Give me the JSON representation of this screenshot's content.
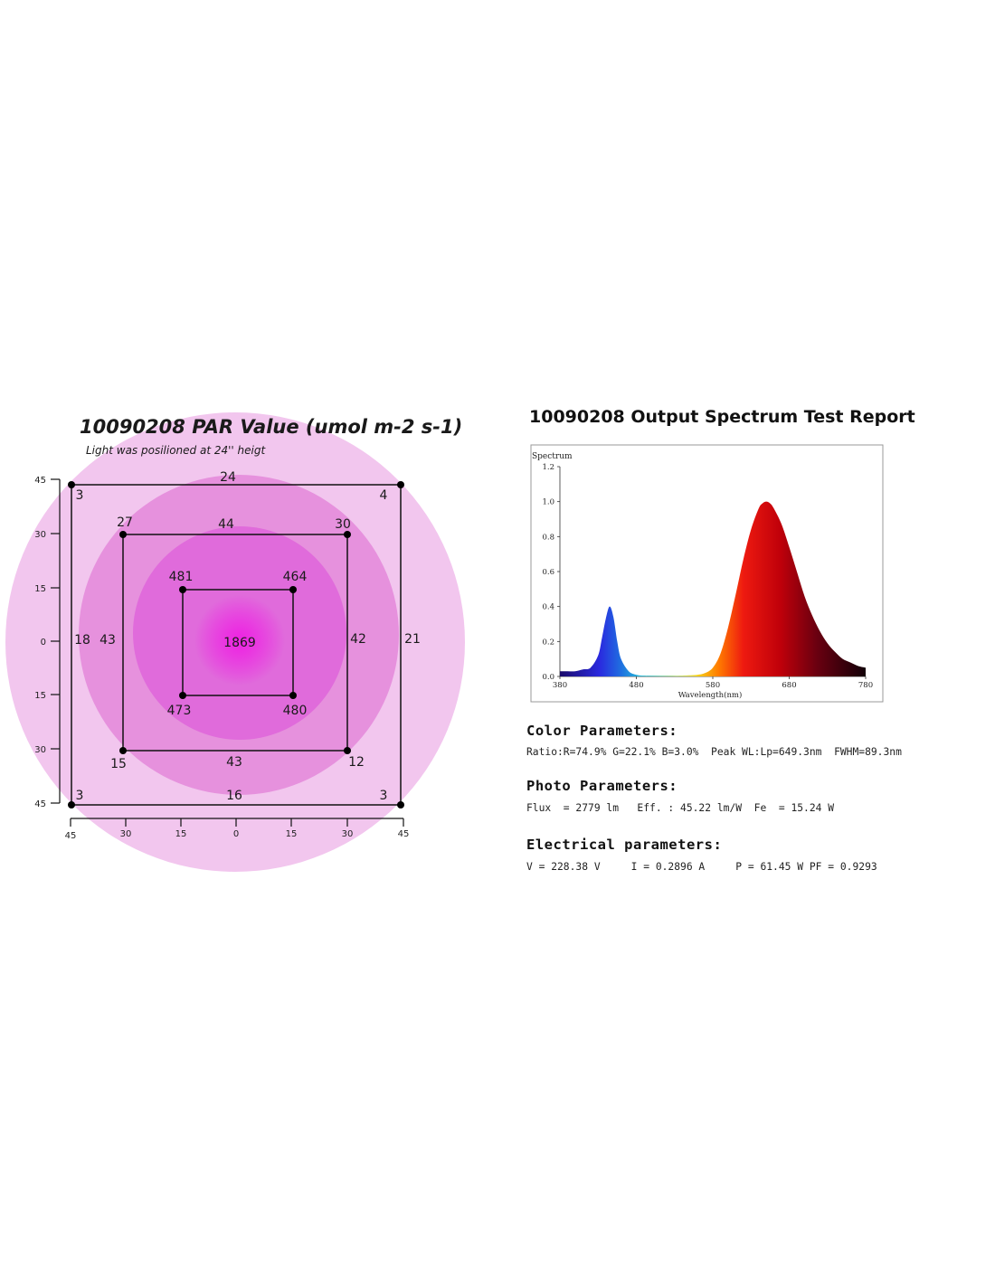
{
  "par": {
    "title": "10090208 PAR Value (umol m-2 s-1)",
    "subtitle": "Light was posilioned at 24'' heigt",
    "center_value": "1869",
    "outer_square": {
      "top": "24",
      "bottom": "16",
      "left": "18",
      "right": "21",
      "top_left": "3",
      "top_right": "4",
      "bottom_left": "3",
      "bottom_right": "3"
    },
    "middle_square": {
      "top": "44",
      "bottom": "43",
      "left": "43",
      "right": "42",
      "top_left": "27",
      "top_right": "30",
      "bottom_left": "15",
      "bottom_right": "12"
    },
    "inner_square": {
      "top_left": "481",
      "top_right": "464",
      "bottom_left": "473",
      "bottom_right": "480"
    },
    "y_ticks": [
      "45",
      "30",
      "15",
      "0",
      "15",
      "30",
      "45"
    ],
    "x_ticks": [
      "45",
      "30",
      "15",
      "0",
      "15",
      "30",
      "45"
    ],
    "colors": {
      "outer_circle": "#f2c6ee",
      "middle_circle": "#e691dd",
      "inner_circle": "#e06bdb",
      "hot_center": "#ee22e2"
    }
  },
  "spectrum": {
    "title": "10090208 Output Spectrum Test Report",
    "chart_label": "Spectrum",
    "color_params_heading": "Color Parameters:",
    "color_params_line": "Ratio:R=74.9% G=22.1% B=3.0%  Peak WL:Lp=649.3nm  FWHM=89.3nm",
    "photo_params_heading": "Photo Parameters:",
    "photo_params_line": "Flux  = 2779 lm   Eff. : 45.22 lm/W  Fe  = 15.24 W",
    "electrical_heading": "Electrical parameters:",
    "electrical_line": "V = 228.38 V     I = 0.2896 A     P = 61.45 W PF = 0.9293"
  },
  "chart_data": {
    "type": "area",
    "title": "",
    "xlabel": "Wavelength(nm)",
    "ylabel": "",
    "xlim": [
      380,
      780
    ],
    "ylim": [
      0,
      1.2
    ],
    "x_ticks": [
      380,
      480,
      580,
      680,
      780
    ],
    "y_ticks": [
      "0.0",
      "0.2",
      "0.4",
      "0.6",
      "0.8",
      "1.0",
      "1.2"
    ],
    "series": [
      {
        "x": [
          380,
          390,
          400,
          410,
          420,
          430,
          435,
          440,
          445,
          450,
          455,
          460,
          470,
          480,
          490,
          500,
          520,
          540,
          560,
          570,
          580,
          590,
          600,
          610,
          620,
          630,
          640,
          645,
          650,
          655,
          660,
          670,
          680,
          690,
          700,
          710,
          720,
          730,
          740,
          750,
          760,
          770,
          780
        ],
        "values": [
          0.03,
          0.03,
          0.03,
          0.04,
          0.05,
          0.12,
          0.22,
          0.33,
          0.4,
          0.34,
          0.2,
          0.1,
          0.03,
          0.01,
          0.005,
          0.005,
          0.005,
          0.005,
          0.01,
          0.02,
          0.05,
          0.13,
          0.28,
          0.47,
          0.67,
          0.84,
          0.96,
          0.99,
          1.0,
          0.99,
          0.96,
          0.87,
          0.74,
          0.6,
          0.46,
          0.35,
          0.26,
          0.19,
          0.14,
          0.1,
          0.08,
          0.06,
          0.05
        ]
      }
    ],
    "grid": false,
    "legend": "none"
  }
}
